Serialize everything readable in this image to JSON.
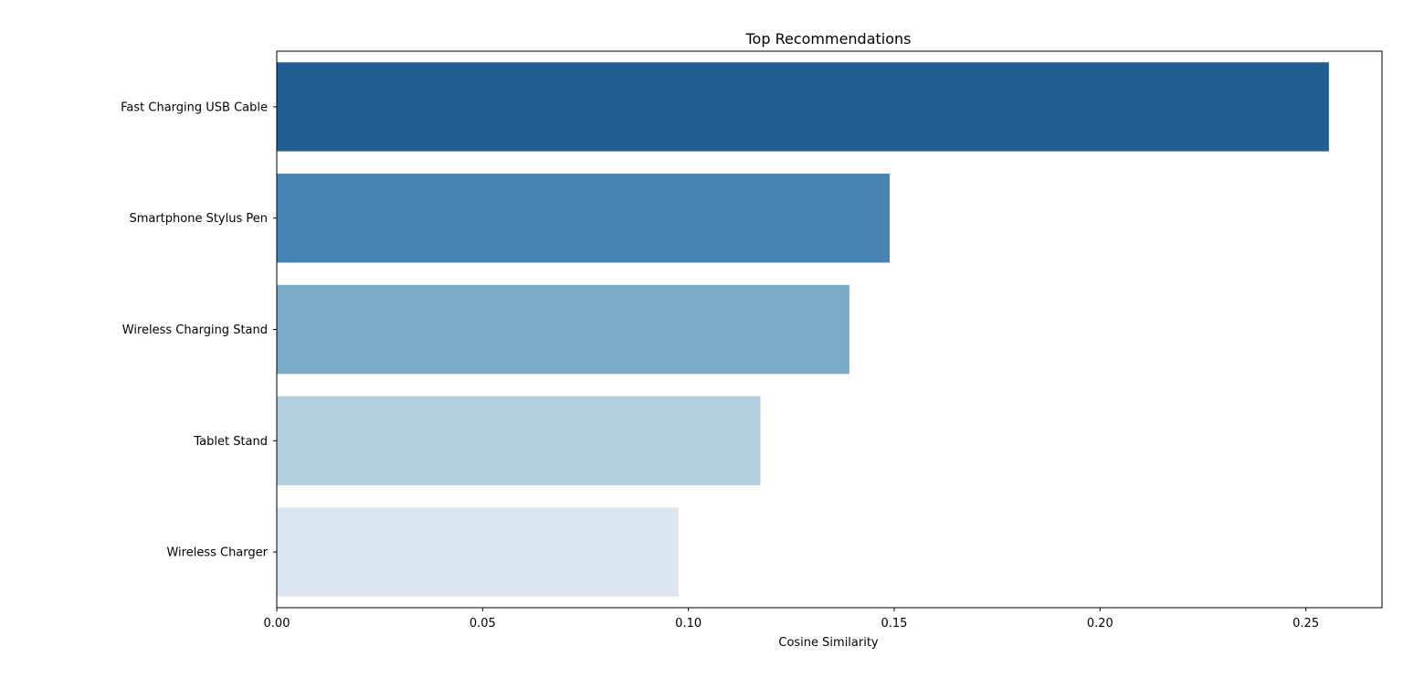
{
  "chart_data": {
    "type": "bar",
    "orientation": "horizontal",
    "title": "Top Recommendations",
    "xlabel": "Cosine Similarity",
    "ylabel": "",
    "categories": [
      "Fast Charging USB Cable",
      "Smartphone Stylus Pen",
      "Wireless Charging Stand",
      "Tablet Stand",
      "Wireless Charger"
    ],
    "values": [
      0.2556,
      0.1489,
      0.1391,
      0.1175,
      0.0976
    ],
    "colors": [
      "#235e93",
      "#4884b1",
      "#7aaac8",
      "#b2cfe0",
      "#dbe6f1"
    ],
    "xlim": [
      0,
      0.2685
    ],
    "xticks": [
      0.0,
      0.05,
      0.1,
      0.15,
      0.2,
      0.25
    ],
    "xtick_labels": [
      "0.00",
      "0.05",
      "0.10",
      "0.15",
      "0.20",
      "0.25"
    ],
    "grid": false,
    "legend": "none"
  }
}
